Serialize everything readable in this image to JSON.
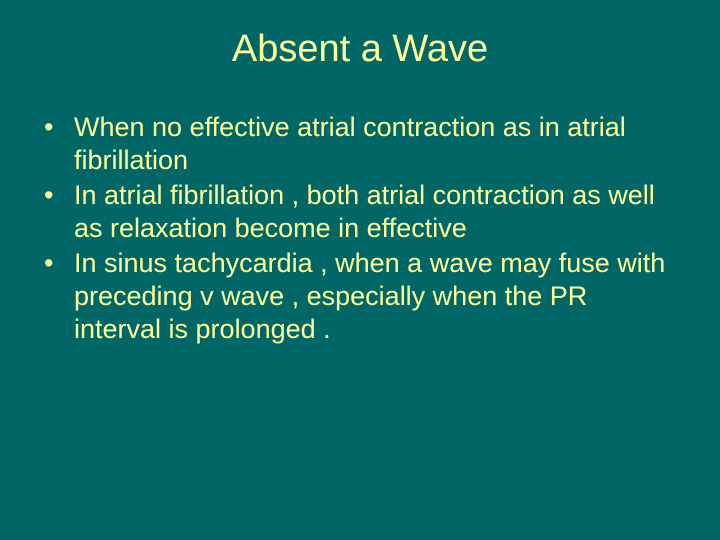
{
  "background_color": "#006666",
  "text_color": "#ffff99",
  "title": {
    "text": "Absent a Wave",
    "fontsize": 38,
    "align": "center"
  },
  "bullets": {
    "fontsize": 27,
    "items": [
      "When no effective atrial contraction as in atrial fibrillation",
      "In atrial fibrillation , both atrial contraction as well as relaxation become in effective",
      "In sinus tachycardia , when a wave may fuse with preceding v wave , especially when the PR interval is prolonged ."
    ]
  }
}
